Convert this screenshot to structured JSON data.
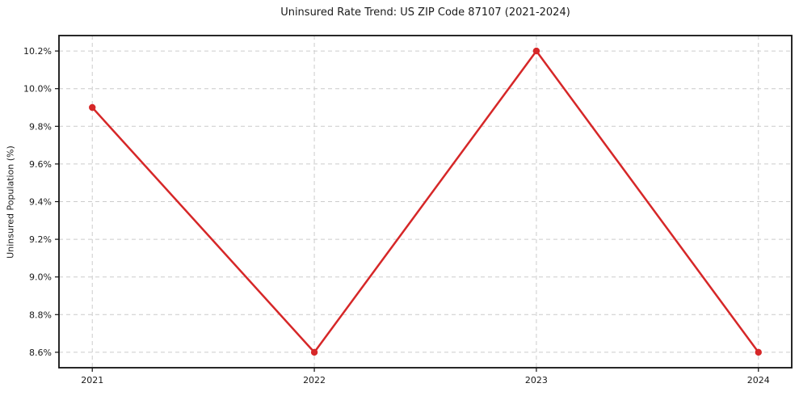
{
  "chart_data": {
    "type": "line",
    "title": "Uninsured Rate Trend: US ZIP Code 87107 (2021-2024)",
    "xlabel": "",
    "ylabel": "Uninsured Population (%)",
    "x": [
      2021,
      2022,
      2023,
      2024
    ],
    "xtick_labels": [
      "2021",
      "2022",
      "2023",
      "2024"
    ],
    "values": [
      9.9,
      8.6,
      10.2,
      8.6
    ],
    "yticks": [
      8.6,
      8.8,
      9.0,
      9.2,
      9.4,
      9.6,
      9.8,
      10.0,
      10.2
    ],
    "ytick_labels": [
      "8.6%",
      "8.8%",
      "9.0%",
      "9.2%",
      "9.4%",
      "9.6%",
      "9.8%",
      "10.0%",
      "10.2%"
    ],
    "xlim": [
      2020.85,
      2024.15
    ],
    "ylim": [
      8.518,
      10.282
    ],
    "grid": true,
    "legend": false,
    "colors": {
      "line": "#d62728",
      "marker": "#d62728",
      "grid": "#cccccc",
      "axis": "#111111",
      "text": "#1a1a1a",
      "background": "#ffffff"
    }
  }
}
